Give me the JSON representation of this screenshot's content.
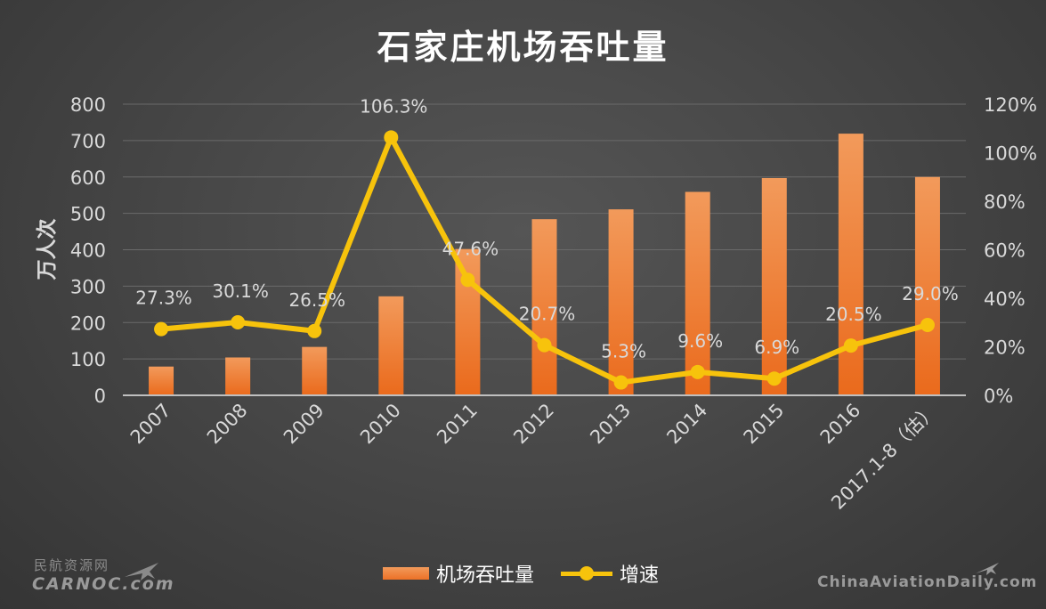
{
  "chart_data": {
    "type": "bar+line",
    "title": "石家庄机场吞吐量",
    "ylabel": "万人次",
    "y2label": "",
    "categories": [
      "2007",
      "2008",
      "2009",
      "2010",
      "2011",
      "2012",
      "2013",
      "2014",
      "2015",
      "2016",
      "2017.1-8（估）"
    ],
    "series": [
      {
        "name": "机场吞吐量",
        "type": "bar",
        "axis": "left",
        "color": "#ed7d31",
        "values": [
          79,
          104,
          133,
          272,
          402,
          484,
          511,
          559,
          597,
          719,
          600
        ]
      },
      {
        "name": "增速",
        "type": "line",
        "axis": "right",
        "color": "#f7c30c",
        "values": [
          27.3,
          30.1,
          26.5,
          106.3,
          47.6,
          20.7,
          5.3,
          9.6,
          6.9,
          20.5,
          29.0
        ],
        "labels": [
          "27.3%",
          "30.1%",
          "26.5%",
          "106.3%",
          "47.6%",
          "20.7%",
          "5.3%",
          "9.6%",
          "6.9%",
          "20.5%",
          "29.0%"
        ]
      }
    ],
    "ylim": [
      0,
      800
    ],
    "yticks": [
      "0",
      "100",
      "200",
      "300",
      "400",
      "500",
      "600",
      "700",
      "800"
    ],
    "y2lim": [
      0,
      120
    ],
    "y2ticks": [
      "0%",
      "20%",
      "40%",
      "60%",
      "80%",
      "100%",
      "120%"
    ],
    "grid": true,
    "legend_position": "bottom"
  },
  "watermarks": {
    "left_cn": "民航资源网",
    "left_en": "CARNOC.com",
    "right_en": "ChinaAviationDaily.com"
  },
  "colors": {
    "background": "#474747",
    "bar": "#ed7d31",
    "line": "#f7c30c",
    "grid": "#6a6a6a",
    "axis_text": "#d9d9d9"
  }
}
